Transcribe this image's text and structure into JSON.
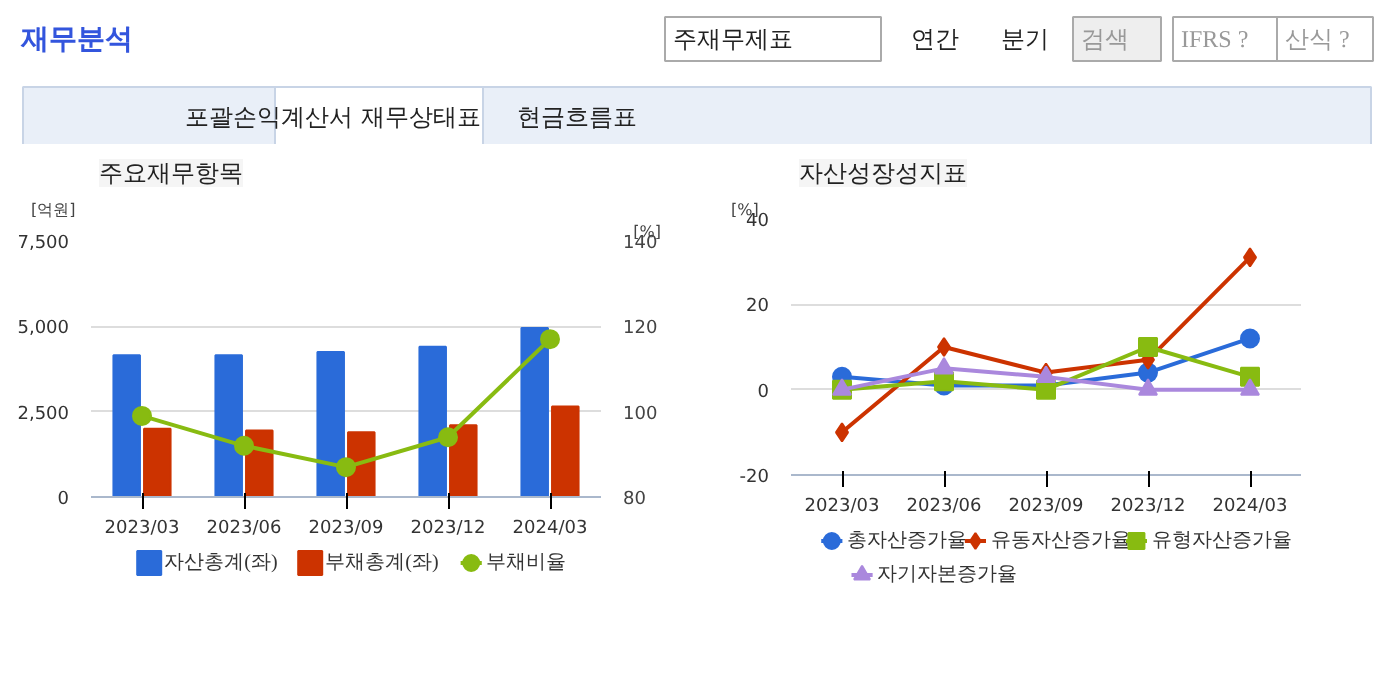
{
  "chart_data": [
    {
      "type": "other",
      "title": "재무분석",
      "annotations": [
        "주재무제표",
        "연간",
        "분기",
        "검색",
        "IFRS ?",
        "산식 ?",
        "포괄손익계산서",
        "재무상태표",
        "현금흐름표"
      ]
    },
    {
      "type": "bar",
      "title": "주요재무항목",
      "ylabel": "[억원]",
      "y2label": "[%]",
      "categories": [
        "2023/03",
        "2023/06",
        "2023/09",
        "2023/12",
        "2024/03"
      ],
      "series": [
        {
          "name": "자산총계(좌)",
          "color": "#2a6bd9",
          "values": [
            4150,
            4150,
            4250,
            4400,
            4950
          ]
        },
        {
          "name": "부채총계(좌)",
          "color": "#cc3300",
          "values": [
            2000,
            1950,
            1900,
            2100,
            2650
          ]
        },
        {
          "name": "부채비율",
          "type": "line",
          "axis": "y2",
          "color": "#88bb11",
          "marker": "circle",
          "values": [
            99,
            92,
            87,
            94,
            117
          ]
        }
      ],
      "ylim": [
        0,
        7500
      ],
      "yticks": [
        0,
        {
          "value": 2500,
          "label": "2,500"
        },
        {
          "value": 5000,
          "label": "5,000"
        },
        {
          "value": 7500,
          "label": "7,500"
        }
      ],
      "y2lim": [
        80,
        140
      ],
      "y2ticks": [
        80,
        100,
        120,
        140
      ],
      "grid": "y",
      "legend": "bottom"
    },
    {
      "type": "line",
      "title": "자산성장성지표",
      "ylabel": "[%]",
      "categories": [
        "2023/03",
        "2023/06",
        "2023/09",
        "2023/12",
        "2024/03"
      ],
      "series": [
        {
          "name": "총자산증가율",
          "color": "#2a6bd9",
          "marker": "circle",
          "values": [
            3,
            1,
            1,
            4,
            12
          ]
        },
        {
          "name": "유동자산증가율",
          "color": "#cc3300",
          "marker": "diamond",
          "values": [
            -10,
            10,
            4,
            7,
            31
          ]
        },
        {
          "name": "유형자산증가율",
          "color": "#88bb11",
          "marker": "square",
          "values": [
            0,
            2,
            0,
            10,
            3
          ]
        },
        {
          "name": "자기자본증가율",
          "color": "#aa88dd",
          "marker": "triangle",
          "values": [
            0,
            5,
            3,
            0,
            0
          ]
        }
      ],
      "ylim": [
        -20,
        40
      ],
      "yticks": [
        -20,
        0,
        20,
        40
      ],
      "grid": "y",
      "legend": "bottom"
    }
  ]
}
